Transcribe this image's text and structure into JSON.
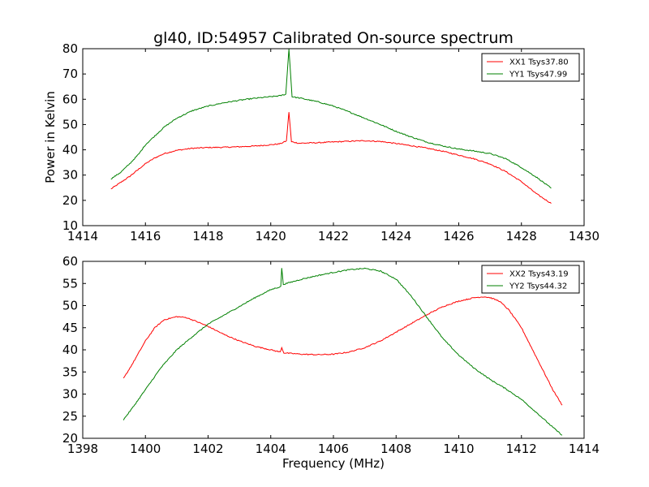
{
  "chart_data": [
    {
      "type": "line",
      "title": "gl40, ID:54957 Calibrated On-source spectrum",
      "xlabel": "",
      "ylabel": "Power in Kelvin",
      "xlim": [
        1414,
        1430
      ],
      "ylim": [
        10,
        80
      ],
      "x_ticks": [
        "1414",
        "1416",
        "1418",
        "1420",
        "1422",
        "1424",
        "1426",
        "1428",
        "1430"
      ],
      "y_ticks": [
        "10",
        "20",
        "30",
        "40",
        "50",
        "60",
        "70",
        "80"
      ],
      "legend_position": "top-right",
      "series": [
        {
          "name": "XX1 Tsys37.80",
          "color": "#ff0000",
          "points": [
            [
              1414.9,
              24.5
            ],
            [
              1415.2,
              27
            ],
            [
              1415.5,
              29.5
            ],
            [
              1415.8,
              32.5
            ],
            [
              1416.0,
              34.5
            ],
            [
              1416.3,
              36.8
            ],
            [
              1416.6,
              38.5
            ],
            [
              1417.0,
              39.8
            ],
            [
              1417.5,
              40.6
            ],
            [
              1418.0,
              40.9
            ],
            [
              1418.5,
              41
            ],
            [
              1419.0,
              41.2
            ],
            [
              1419.5,
              41.5
            ],
            [
              1420.0,
              42
            ],
            [
              1420.3,
              42.4
            ],
            [
              1420.5,
              43.5
            ],
            [
              1420.58,
              55
            ],
            [
              1420.66,
              43.2
            ],
            [
              1420.9,
              42.6
            ],
            [
              1421.5,
              42.8
            ],
            [
              1422.0,
              43.1
            ],
            [
              1422.5,
              43.4
            ],
            [
              1423.0,
              43.6
            ],
            [
              1423.5,
              43.3
            ],
            [
              1424.0,
              42.5
            ],
            [
              1424.5,
              41.6
            ],
            [
              1425.0,
              40.6
            ],
            [
              1425.5,
              39.4
            ],
            [
              1426.0,
              37.9
            ],
            [
              1426.5,
              36.4
            ],
            [
              1427.0,
              34.4
            ],
            [
              1427.5,
              31.4
            ],
            [
              1428.0,
              27.4
            ],
            [
              1428.5,
              22.4
            ],
            [
              1428.95,
              18.8
            ]
          ]
        },
        {
          "name": "YY1 Tsys47.99",
          "color": "#008000",
          "points": [
            [
              1414.9,
              28.5
            ],
            [
              1415.2,
              31
            ],
            [
              1415.5,
              34.5
            ],
            [
              1415.8,
              38.5
            ],
            [
              1416.0,
              42
            ],
            [
              1416.3,
              45.5
            ],
            [
              1416.6,
              49
            ],
            [
              1417.0,
              52.5
            ],
            [
              1417.5,
              55.5
            ],
            [
              1418.0,
              57.3
            ],
            [
              1418.5,
              58.6
            ],
            [
              1419.0,
              59.6
            ],
            [
              1419.5,
              60.4
            ],
            [
              1420.0,
              61
            ],
            [
              1420.3,
              61.4
            ],
            [
              1420.48,
              62
            ],
            [
              1420.58,
              80
            ],
            [
              1420.68,
              61
            ],
            [
              1421.0,
              60.3
            ],
            [
              1421.5,
              59
            ],
            [
              1422.0,
              57.3
            ],
            [
              1422.5,
              55
            ],
            [
              1423.0,
              52.5
            ],
            [
              1423.5,
              50
            ],
            [
              1424.0,
              47.3
            ],
            [
              1424.5,
              45
            ],
            [
              1425.0,
              43
            ],
            [
              1425.5,
              41.5
            ],
            [
              1426.0,
              40.3
            ],
            [
              1426.5,
              39.5
            ],
            [
              1427.0,
              38.5
            ],
            [
              1427.5,
              36.5
            ],
            [
              1428.0,
              33
            ],
            [
              1428.5,
              29
            ],
            [
              1428.95,
              24.8
            ]
          ]
        }
      ]
    },
    {
      "type": "line",
      "title": "",
      "xlabel": "Frequency (MHz)",
      "ylabel": "",
      "xlim": [
        1398,
        1414
      ],
      "ylim": [
        20,
        60
      ],
      "x_ticks": [
        "1398",
        "1400",
        "1402",
        "1404",
        "1406",
        "1408",
        "1410",
        "1412",
        "1414"
      ],
      "y_ticks": [
        "20",
        "25",
        "30",
        "35",
        "40",
        "45",
        "50",
        "55",
        "60"
      ],
      "legend_position": "top-right",
      "series": [
        {
          "name": "XX2 Tsys43.19",
          "color": "#ff0000",
          "points": [
            [
              1399.3,
              33.5
            ],
            [
              1399.6,
              37
            ],
            [
              1400.0,
              42
            ],
            [
              1400.3,
              45
            ],
            [
              1400.6,
              46.8
            ],
            [
              1401.0,
              47.5
            ],
            [
              1401.3,
              47.3
            ],
            [
              1401.6,
              46.5
            ],
            [
              1402.0,
              45.3
            ],
            [
              1402.5,
              43.5
            ],
            [
              1403.0,
              42
            ],
            [
              1403.5,
              40.8
            ],
            [
              1404.0,
              40
            ],
            [
              1404.3,
              39.5
            ],
            [
              1404.35,
              40.5
            ],
            [
              1404.42,
              39.3
            ],
            [
              1405.0,
              39
            ],
            [
              1405.5,
              38.9
            ],
            [
              1406.0,
              39
            ],
            [
              1406.5,
              39.5
            ],
            [
              1407.0,
              40.5
            ],
            [
              1407.5,
              42
            ],
            [
              1408.0,
              44
            ],
            [
              1408.5,
              46
            ],
            [
              1409.0,
              48
            ],
            [
              1409.5,
              49.8
            ],
            [
              1410.0,
              51
            ],
            [
              1410.5,
              51.8
            ],
            [
              1410.8,
              52
            ],
            [
              1411.0,
              51.8
            ],
            [
              1411.3,
              51
            ],
            [
              1411.6,
              49
            ],
            [
              1412.0,
              45
            ],
            [
              1412.5,
              38
            ],
            [
              1413.0,
              31
            ],
            [
              1413.3,
              27.5
            ]
          ]
        },
        {
          "name": "YY2 Tsys44.32",
          "color": "#008000",
          "points": [
            [
              1399.3,
              24.2
            ],
            [
              1399.6,
              27
            ],
            [
              1400.0,
              31
            ],
            [
              1400.5,
              36
            ],
            [
              1401.0,
              40
            ],
            [
              1401.5,
              43
            ],
            [
              1402.0,
              45.8
            ],
            [
              1402.5,
              47.8
            ],
            [
              1403.0,
              49.8
            ],
            [
              1403.5,
              51.8
            ],
            [
              1404.0,
              53.6
            ],
            [
              1404.32,
              54.3
            ],
            [
              1404.35,
              58.5
            ],
            [
              1404.4,
              54.8
            ],
            [
              1405.0,
              56
            ],
            [
              1405.5,
              56.8
            ],
            [
              1406.0,
              57.5
            ],
            [
              1406.5,
              58.1
            ],
            [
              1407.0,
              58.4
            ],
            [
              1407.5,
              57.8
            ],
            [
              1408.0,
              56
            ],
            [
              1408.5,
              52
            ],
            [
              1409.0,
              47.2
            ],
            [
              1409.5,
              42.5
            ],
            [
              1410.0,
              38.8
            ],
            [
              1410.5,
              35.8
            ],
            [
              1411.0,
              33.3
            ],
            [
              1411.5,
              31.2
            ],
            [
              1412.0,
              28.8
            ],
            [
              1412.5,
              25.7
            ],
            [
              1413.0,
              22.5
            ],
            [
              1413.3,
              20.7
            ]
          ]
        }
      ]
    }
  ]
}
